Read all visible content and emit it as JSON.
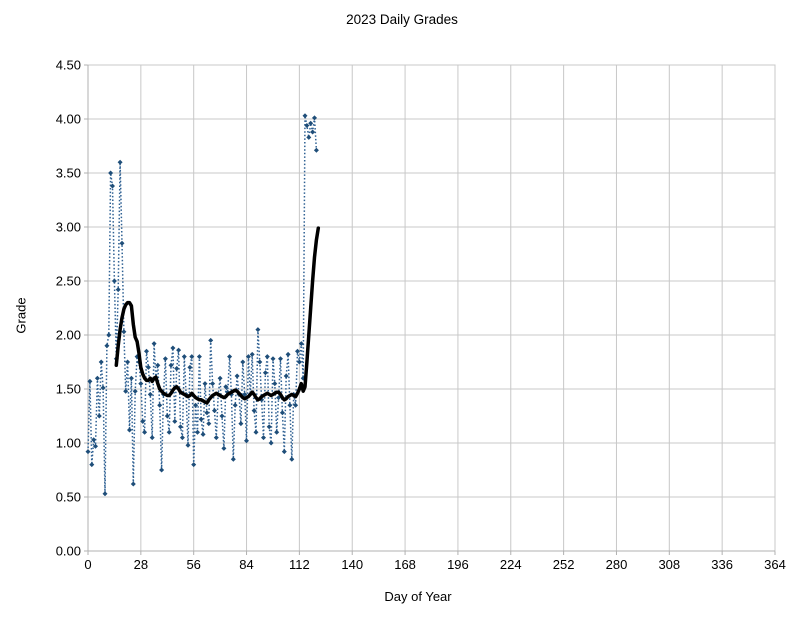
{
  "chart_data": {
    "type": "line",
    "title": "2023 Daily Grades",
    "xlabel": "Day of Year",
    "ylabel": "Grade",
    "xlim": [
      0,
      364
    ],
    "ylim": [
      0.0,
      4.5
    ],
    "grid": true,
    "legend": "none",
    "x_ticks": [
      0,
      28,
      56,
      84,
      112,
      140,
      168,
      196,
      224,
      252,
      280,
      308,
      336,
      364
    ],
    "y_ticks": [
      0.0,
      0.5,
      1.0,
      1.5,
      2.0,
      2.5,
      3.0,
      3.5,
      4.0,
      4.5
    ],
    "y_tick_labels": [
      "0.00",
      "0.50",
      "1.00",
      "1.50",
      "2.00",
      "2.50",
      "3.00",
      "3.50",
      "4.00",
      "4.50"
    ],
    "colors": {
      "daily_series": "#1F4E79",
      "daily_line": "#2E6093",
      "moving_average": "#000000",
      "gridline": "#c8c8c8",
      "axis": "#b0b0b0"
    },
    "series": [
      {
        "name": "daily-grades",
        "style": "dotted-line-with-diamond-markers",
        "days_start": 0,
        "days_step": 1,
        "values": [
          0.92,
          1.57,
          0.8,
          1.03,
          0.97,
          1.6,
          1.25,
          1.75,
          1.51,
          0.53,
          1.9,
          2.0,
          3.5,
          3.38,
          2.5,
          1.78,
          2.42,
          3.6,
          2.85,
          2.03,
          1.48,
          1.75,
          1.12,
          1.6,
          0.62,
          1.48,
          1.8,
          1.75,
          1.55,
          1.2,
          1.1,
          1.85,
          1.7,
          1.45,
          1.05,
          1.92,
          1.6,
          1.72,
          1.35,
          0.75,
          1.45,
          1.78,
          1.25,
          1.1,
          1.72,
          1.88,
          1.2,
          1.69,
          1.86,
          1.15,
          1.05,
          1.8,
          1.45,
          0.98,
          1.7,
          1.8,
          0.8,
          1.35,
          1.1,
          1.8,
          1.22,
          1.08,
          1.55,
          1.28,
          1.18,
          1.95,
          1.55,
          1.3,
          1.05,
          1.45,
          1.6,
          1.25,
          0.95,
          1.52,
          1.47,
          1.8,
          1.45,
          0.85,
          1.35,
          1.62,
          1.45,
          1.18,
          1.75,
          1.45,
          1.02,
          1.8,
          1.45,
          1.82,
          1.3,
          1.1,
          2.05,
          1.75,
          1.4,
          1.05,
          1.65,
          1.8,
          1.15,
          1.0,
          1.78,
          1.55,
          1.1,
          1.42,
          1.78,
          1.28,
          0.92,
          1.62,
          1.82,
          1.35,
          0.85,
          1.45,
          1.35,
          1.85,
          1.75,
          1.92,
          1.6,
          4.03,
          3.94,
          3.83,
          3.96,
          3.88,
          4.01,
          3.71
        ]
      },
      {
        "name": "moving-average",
        "style": "solid-thick-line",
        "points": [
          [
            15,
            1.72
          ],
          [
            16,
            1.9
          ],
          [
            17,
            2.05
          ],
          [
            18,
            2.16
          ],
          [
            19,
            2.24
          ],
          [
            20,
            2.28
          ],
          [
            21,
            2.3
          ],
          [
            22,
            2.3
          ],
          [
            23,
            2.27
          ],
          [
            24,
            2.1
          ],
          [
            25,
            1.98
          ],
          [
            26,
            1.94
          ],
          [
            27,
            1.83
          ],
          [
            28,
            1.7
          ],
          [
            29,
            1.64
          ],
          [
            30,
            1.6
          ],
          [
            31,
            1.58
          ],
          [
            32,
            1.58
          ],
          [
            33,
            1.6
          ],
          [
            34,
            1.57
          ],
          [
            35,
            1.6
          ],
          [
            36,
            1.61
          ],
          [
            37,
            1.55
          ],
          [
            38,
            1.5
          ],
          [
            39,
            1.48
          ],
          [
            40,
            1.46
          ],
          [
            41,
            1.45
          ],
          [
            42,
            1.44
          ],
          [
            43,
            1.44
          ],
          [
            44,
            1.46
          ],
          [
            45,
            1.49
          ],
          [
            46,
            1.51
          ],
          [
            47,
            1.52
          ],
          [
            48,
            1.5
          ],
          [
            49,
            1.47
          ],
          [
            50,
            1.46
          ],
          [
            51,
            1.45
          ],
          [
            52,
            1.44
          ],
          [
            53,
            1.43
          ],
          [
            54,
            1.44
          ],
          [
            55,
            1.46
          ],
          [
            56,
            1.44
          ],
          [
            57,
            1.42
          ],
          [
            58,
            1.41
          ],
          [
            59,
            1.4
          ],
          [
            60,
            1.4
          ],
          [
            61,
            1.39
          ],
          [
            62,
            1.38
          ],
          [
            63,
            1.37
          ],
          [
            64,
            1.4
          ],
          [
            65,
            1.42
          ],
          [
            66,
            1.44
          ],
          [
            67,
            1.45
          ],
          [
            68,
            1.46
          ],
          [
            69,
            1.45
          ],
          [
            70,
            1.44
          ],
          [
            71,
            1.43
          ],
          [
            72,
            1.42
          ],
          [
            73,
            1.43
          ],
          [
            74,
            1.45
          ],
          [
            75,
            1.46
          ],
          [
            76,
            1.47
          ],
          [
            77,
            1.48
          ],
          [
            78,
            1.49
          ],
          [
            79,
            1.48
          ],
          [
            80,
            1.46
          ],
          [
            81,
            1.44
          ],
          [
            82,
            1.42
          ],
          [
            83,
            1.41
          ],
          [
            84,
            1.42
          ],
          [
            85,
            1.43
          ],
          [
            86,
            1.45
          ],
          [
            87,
            1.47
          ],
          [
            88,
            1.45
          ],
          [
            89,
            1.42
          ],
          [
            90,
            1.4
          ],
          [
            91,
            1.41
          ],
          [
            92,
            1.43
          ],
          [
            93,
            1.44
          ],
          [
            94,
            1.45
          ],
          [
            95,
            1.46
          ],
          [
            96,
            1.45
          ],
          [
            97,
            1.44
          ],
          [
            98,
            1.45
          ],
          [
            99,
            1.46
          ],
          [
            100,
            1.47
          ],
          [
            101,
            1.47
          ],
          [
            102,
            1.45
          ],
          [
            103,
            1.42
          ],
          [
            104,
            1.4
          ],
          [
            105,
            1.41
          ],
          [
            106,
            1.43
          ],
          [
            107,
            1.44
          ],
          [
            108,
            1.45
          ],
          [
            109,
            1.44
          ],
          [
            110,
            1.43
          ],
          [
            111,
            1.46
          ],
          [
            112,
            1.5
          ],
          [
            113,
            1.55
          ],
          [
            114,
            1.48
          ],
          [
            115,
            1.52
          ],
          [
            116,
            1.75
          ],
          [
            117,
            2.0
          ],
          [
            118,
            2.25
          ],
          [
            119,
            2.5
          ],
          [
            120,
            2.72
          ],
          [
            121,
            2.88
          ],
          [
            122,
            2.99
          ]
        ]
      }
    ]
  }
}
